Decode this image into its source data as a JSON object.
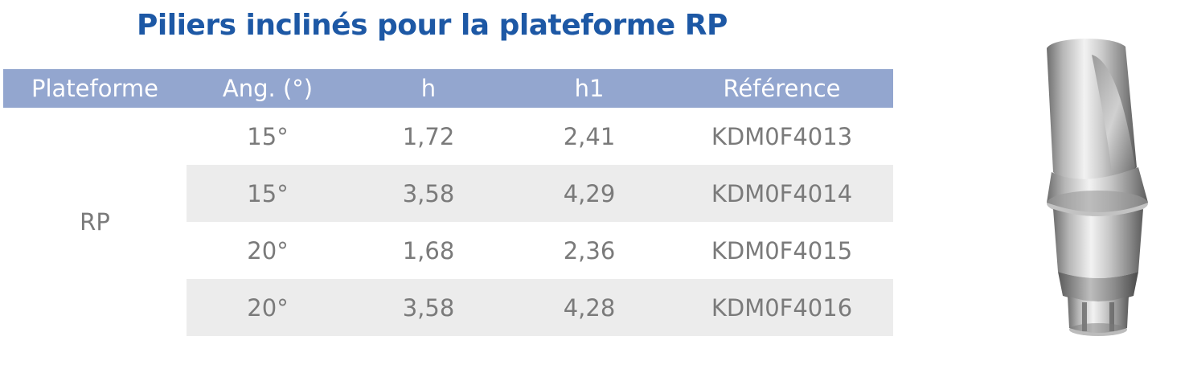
{
  "title": "Piliers inclinés pour la plateforme RP",
  "table": {
    "headers": [
      "Plateforme",
      "Ang. (°)",
      "h",
      "h1",
      "Référence"
    ],
    "platform": "RP",
    "rows": [
      {
        "angle": "15°",
        "h": "1,72",
        "h1": "2,41",
        "reference": "KDM0F4013"
      },
      {
        "angle": "15°",
        "h": "3,58",
        "h1": "4,29",
        "reference": "KDM0F4014"
      },
      {
        "angle": "20°",
        "h": "1,68",
        "h1": "2,36",
        "reference": "KDM0F4015"
      },
      {
        "angle": "20°",
        "h": "3,58",
        "h1": "4,28",
        "reference": "KDM0F4016"
      }
    ]
  },
  "colors": {
    "title": "#1d58a5",
    "header_background": "#93a6cf",
    "header_text": "#ffffff",
    "cell_text": "#7a7a7a",
    "shaded_row": "#ececec"
  },
  "image": {
    "icon": "angled-abutment-product-image"
  }
}
